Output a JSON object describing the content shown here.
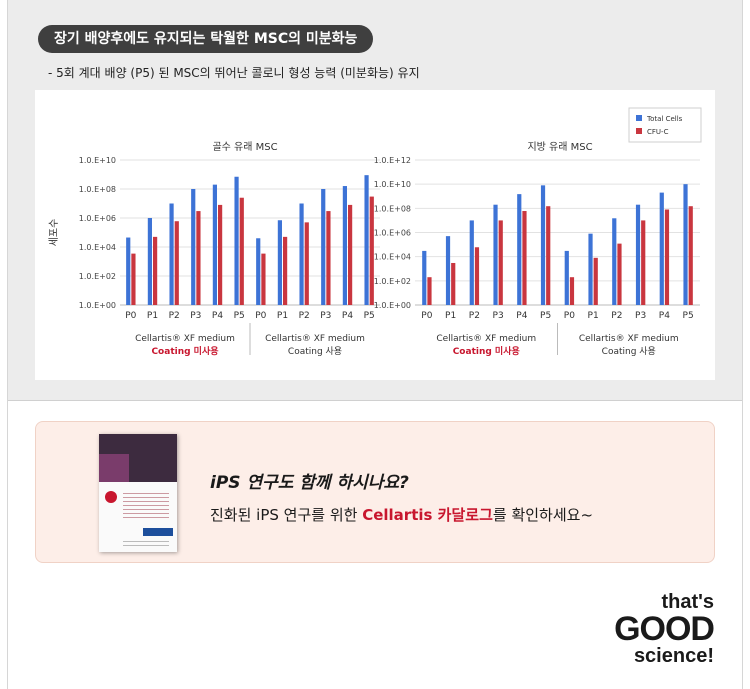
{
  "heading": "장기 배양후에도 유지되는 탁월한 MSC의 미분화능",
  "subline": "- 5회 계대 배양 (P5) 된 MSC의 뛰어난 콜로니 형성 능력 (미분화능) 유지",
  "colors": {
    "total_cells": "#3d73d6",
    "cfu_c": "#c9363f",
    "accent_red": "#c8162e",
    "heading_bg": "#3f3f3f"
  },
  "chart_data": [
    {
      "type": "bar",
      "title": "골수 유래 MSC",
      "ylabel": "세포수",
      "y_scale": "log",
      "ylim": [
        1,
        10000000000.0
      ],
      "y_tick_labels": [
        "1.0.E+00",
        "1.0.E+02",
        "1.0.E+04",
        "1.0.E+06",
        "1.0.E+08",
        "1.0.E+10"
      ],
      "categories": [
        "P0",
        "P1",
        "P2",
        "P3",
        "P4",
        "P5",
        "P0",
        "P1",
        "P2",
        "P3",
        "P4",
        "P5"
      ],
      "groups": [
        {
          "label": "Cellartis® XF medium",
          "sublabel": "Coating 미사용"
        },
        {
          "label": "Cellartis® XF medium",
          "sublabel": "Coating 사용"
        }
      ],
      "series": [
        {
          "name": "Total Cells",
          "values": [
            45000,
            1000000,
            10000000,
            100000000,
            200000000,
            700000000,
            40000,
            700000,
            10000000,
            100000000,
            160000000,
            900000000
          ]
        },
        {
          "name": "CFU-C",
          "values": [
            3500,
            50000,
            600000,
            3000000,
            8000000,
            25000000,
            3500,
            50000,
            500000,
            3000000,
            8000000,
            30000000
          ]
        }
      ],
      "legend": "top-right",
      "grid": true
    },
    {
      "type": "bar",
      "title": "지방 유래 MSC",
      "y_scale": "log",
      "ylim": [
        1,
        1000000000000.0
      ],
      "y_tick_labels": [
        "1.0.E+00",
        "1.0.E+02",
        "1.0.E+04",
        "1.0.E+06",
        "1.0.E+08",
        "1.0.E+10",
        "1.0.E+12"
      ],
      "categories": [
        "P0",
        "P1",
        "P2",
        "P3",
        "P4",
        "P5",
        "P0",
        "P1",
        "P2",
        "P3",
        "P4",
        "P5"
      ],
      "groups": [
        {
          "label": "Cellartis® XF medium",
          "sublabel": "Coating 미사용"
        },
        {
          "label": "Cellartis® XF medium",
          "sublabel": "Coating 사용"
        }
      ],
      "series": [
        {
          "name": "Total Cells",
          "values": [
            30000,
            500000,
            10000000,
            200000000,
            1500000000,
            8000000000,
            30000,
            800000,
            15000000,
            200000000,
            2000000000,
            10000000000
          ]
        },
        {
          "name": "CFU-C",
          "values": [
            200,
            3000,
            60000,
            10000000,
            60000000,
            150000000,
            200,
            8000,
            120000,
            10000000,
            80000000,
            150000000
          ]
        }
      ],
      "grid": true
    }
  ],
  "legend": {
    "total_label": "Total Cells",
    "cfu_label": "CFU-C"
  },
  "promo": {
    "question": "iPS 연구도 함께 하시나요?",
    "line_pre": "진화된 iPS 연구를 위한 ",
    "line_highlight": "Cellartis 카달로그",
    "line_post": "를 확인하세요~"
  },
  "brand": {
    "line1": "that's",
    "line2": "GOOD",
    "line3": "science!"
  }
}
